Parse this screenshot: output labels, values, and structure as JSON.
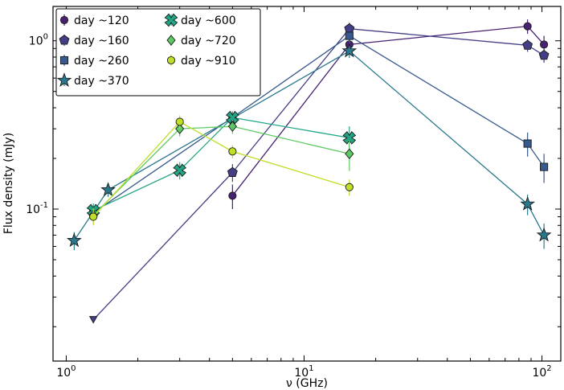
{
  "chart_data": {
    "type": "scatter",
    "xlabel": "ν (GHz)",
    "ylabel": "Flux density (mJy)",
    "xscale": "log",
    "yscale": "log",
    "xlim": [
      0.88,
      120
    ],
    "ylim": [
      0.0125,
      1.6
    ],
    "xticks": [
      {
        "value": 1,
        "label": "10^0"
      },
      {
        "value": 10,
        "label": "10^1"
      },
      {
        "value": 100,
        "label": "10^2"
      }
    ],
    "yticks": [
      {
        "value": 0.1,
        "label": "10^-1"
      },
      {
        "value": 1,
        "label": "10^0"
      }
    ],
    "grid": false,
    "legend_position": "top-left",
    "series": [
      {
        "name": "day ~120",
        "marker": "circle",
        "color": "#482173",
        "points": [
          {
            "x": 5.0,
            "y": 0.12,
            "err": 0.02
          },
          {
            "x": 15.5,
            "y": 0.95,
            "err": 0.12
          },
          {
            "x": 87.0,
            "y": 1.22,
            "err": 0.12
          },
          {
            "x": 102.0,
            "y": 0.95,
            "err": 0.12
          }
        ]
      },
      {
        "name": "day ~160",
        "marker": "pentagon",
        "color": "#433e85",
        "points": [
          {
            "x": 1.3,
            "y": 0.022,
            "upper_limit": true
          },
          {
            "x": 5.0,
            "y": 0.165,
            "err": 0.02
          },
          {
            "x": 15.5,
            "y": 1.18,
            "err": 0.1
          },
          {
            "x": 87.0,
            "y": 0.94,
            "err": 0.08
          },
          {
            "x": 102.0,
            "y": 0.82,
            "err": 0.08
          }
        ]
      },
      {
        "name": "day ~260",
        "marker": "square",
        "color": "#38598c",
        "points": [
          {
            "x": 1.3,
            "y": 0.095,
            "err": 0.01
          },
          {
            "x": 5.0,
            "y": 0.35,
            "err": 0.03
          },
          {
            "x": 15.5,
            "y": 1.07,
            "err": 0.1
          },
          {
            "x": 87.0,
            "y": 0.245,
            "err": 0.04
          },
          {
            "x": 102.0,
            "y": 0.178,
            "err": 0.035
          }
        ]
      },
      {
        "name": "day ~370",
        "marker": "star",
        "color": "#2a788e",
        "points": [
          {
            "x": 1.08,
            "y": 0.065,
            "err": 0.008
          },
          {
            "x": 1.5,
            "y": 0.13,
            "err": 0.012
          },
          {
            "x": 15.5,
            "y": 0.87,
            "err": 0.08
          },
          {
            "x": 87.0,
            "y": 0.107,
            "err": 0.015
          },
          {
            "x": 102.0,
            "y": 0.07,
            "err": 0.012
          }
        ]
      },
      {
        "name": "day ~600",
        "marker": "x",
        "color": "#21a585",
        "points": [
          {
            "x": 1.3,
            "y": 0.098,
            "err": 0.01
          },
          {
            "x": 3.0,
            "y": 0.17,
            "err": 0.02
          },
          {
            "x": 5.0,
            "y": 0.35,
            "err": 0.03
          },
          {
            "x": 15.5,
            "y": 0.265,
            "err": 0.045
          }
        ]
      },
      {
        "name": "day ~720",
        "marker": "diamond",
        "color": "#5ec962",
        "points": [
          {
            "x": 1.3,
            "y": 0.092,
            "err": 0.01
          },
          {
            "x": 3.0,
            "y": 0.3,
            "err": 0.03
          },
          {
            "x": 5.0,
            "y": 0.31,
            "err": 0.03
          },
          {
            "x": 15.5,
            "y": 0.213,
            "err": 0.045
          }
        ]
      },
      {
        "name": "day ~910",
        "marker": "circle",
        "color": "#bddf26",
        "points": [
          {
            "x": 1.3,
            "y": 0.09,
            "err": 0.01
          },
          {
            "x": 3.0,
            "y": 0.33,
            "err": 0.03
          },
          {
            "x": 5.0,
            "y": 0.22,
            "err": 0.02
          },
          {
            "x": 15.5,
            "y": 0.135,
            "err": 0.015
          }
        ]
      }
    ]
  }
}
